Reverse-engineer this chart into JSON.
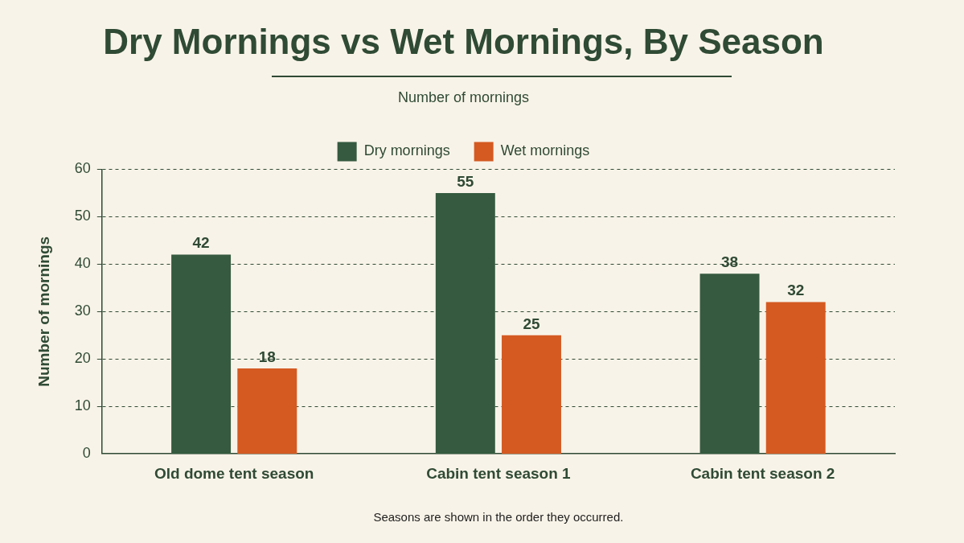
{
  "chart_data": {
    "type": "bar",
    "title": "Dry Mornings vs Wet Mornings, By Season",
    "subtitle": "Number of mornings",
    "ylabel": "Number of mornings",
    "categories": [
      "Old dome tent season",
      "Cabin tent season 1",
      "Cabin tent season 2"
    ],
    "series": [
      {
        "name": "Dry mornings",
        "color": "#355a3f",
        "values": [
          42,
          55,
          38
        ]
      },
      {
        "name": "Wet mornings",
        "color": "#d45a22",
        "values": [
          18,
          25,
          32
        ]
      }
    ],
    "ylim": [
      0,
      60
    ],
    "yticks": [
      0,
      10,
      20,
      30,
      40,
      50,
      60
    ],
    "grid": "y",
    "legend": "top",
    "data_labels": true,
    "annotations": [
      "Seasons are shown in the order they occurred."
    ]
  }
}
